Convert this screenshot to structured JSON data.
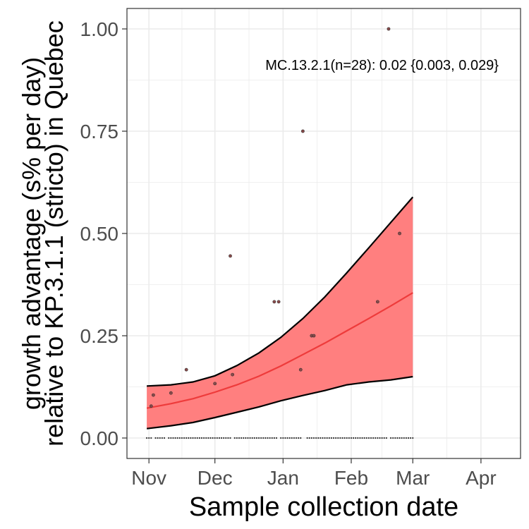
{
  "chart_data": {
    "type": "line",
    "xlabel": "Sample collection date",
    "ylabel_line1": "growth advantage (s% per day)",
    "ylabel_line2": "relative to KP.3.1.1 (stricto) in Quebec",
    "annotation": "MC.13.2.1(n=28): 0.02 {0.003, 0.029}",
    "x_ticks": [
      "Nov",
      "Dec",
      "Jan",
      "Feb",
      "Mar",
      "Apr"
    ],
    "x_tick_days": [
      0,
      30,
      61,
      92,
      120,
      151
    ],
    "x_range_days": [
      -10,
      169
    ],
    "y_ticks": [
      0.0,
      0.25,
      0.5,
      0.75,
      1.0
    ],
    "y_tick_labels": [
      "0.00",
      "0.25",
      "0.50",
      "0.75",
      "1.00"
    ],
    "ylim": [
      -0.05,
      1.05
    ],
    "grid": true,
    "colors": {
      "ribbon": "#ff7f7f",
      "fit_line": "#ee3b3b",
      "ribbon_edge": "#000000",
      "points": "#8b4a4a",
      "grid": "#ebebeb"
    },
    "series": [
      {
        "kind": "fit",
        "x_days": [
          -1,
          10,
          20,
          30,
          40,
          50,
          60,
          70,
          80,
          90,
          100,
          110,
          120
        ],
        "y": [
          0.073,
          0.084,
          0.096,
          0.112,
          0.13,
          0.151,
          0.176,
          0.204,
          0.232,
          0.262,
          0.292,
          0.323,
          0.355
        ]
      },
      {
        "kind": "ribbon_upper",
        "x_days": [
          -1,
          10,
          20,
          30,
          40,
          50,
          60,
          70,
          80,
          90,
          100,
          110,
          120
        ],
        "y": [
          0.127,
          0.13,
          0.137,
          0.152,
          0.177,
          0.208,
          0.246,
          0.292,
          0.345,
          0.404,
          0.465,
          0.527,
          0.589
        ]
      },
      {
        "kind": "ribbon_lower",
        "x_days": [
          -1,
          10,
          20,
          30,
          40,
          50,
          60,
          70,
          80,
          90,
          100,
          110,
          120
        ],
        "y": [
          0.023,
          0.03,
          0.038,
          0.05,
          0.063,
          0.076,
          0.091,
          0.104,
          0.116,
          0.13,
          0.137,
          0.142,
          0.15
        ]
      },
      {
        "kind": "points",
        "x_days": [
          1,
          2,
          10,
          17,
          30,
          37,
          38,
          57,
          59,
          69,
          70,
          74,
          75,
          104,
          109,
          114
        ],
        "y": [
          0.078,
          0.105,
          0.11,
          0.167,
          0.133,
          0.445,
          0.155,
          0.333,
          0.333,
          0.167,
          0.75,
          0.25,
          0.25,
          0.333,
          1.0,
          0.5
        ]
      },
      {
        "kind": "zero_points",
        "x_days": [
          -1,
          0,
          1,
          3,
          4,
          5,
          6,
          7,
          9,
          10,
          11,
          12,
          13,
          14,
          15,
          16,
          17,
          18,
          19,
          20,
          21,
          22,
          23,
          24,
          25,
          26,
          27,
          28,
          29,
          30,
          31,
          32,
          33,
          34,
          35,
          36,
          37,
          39,
          40,
          41,
          42,
          43,
          44,
          45,
          46,
          47,
          48,
          49,
          50,
          51,
          52,
          53,
          54,
          55,
          56,
          57,
          58,
          60,
          61,
          62,
          63,
          64,
          65,
          66,
          67,
          68,
          69,
          72,
          73,
          74,
          75,
          76,
          77,
          78,
          79,
          80,
          81,
          82,
          83,
          84,
          85,
          86,
          87,
          88,
          89,
          90,
          91,
          92,
          93,
          94,
          95,
          96,
          97,
          98,
          99,
          100,
          101,
          102,
          103,
          104,
          105,
          106,
          107,
          108,
          110,
          111,
          112,
          113,
          114,
          115,
          116,
          117,
          118,
          119,
          120
        ],
        "y_value": 0.0
      }
    ]
  }
}
